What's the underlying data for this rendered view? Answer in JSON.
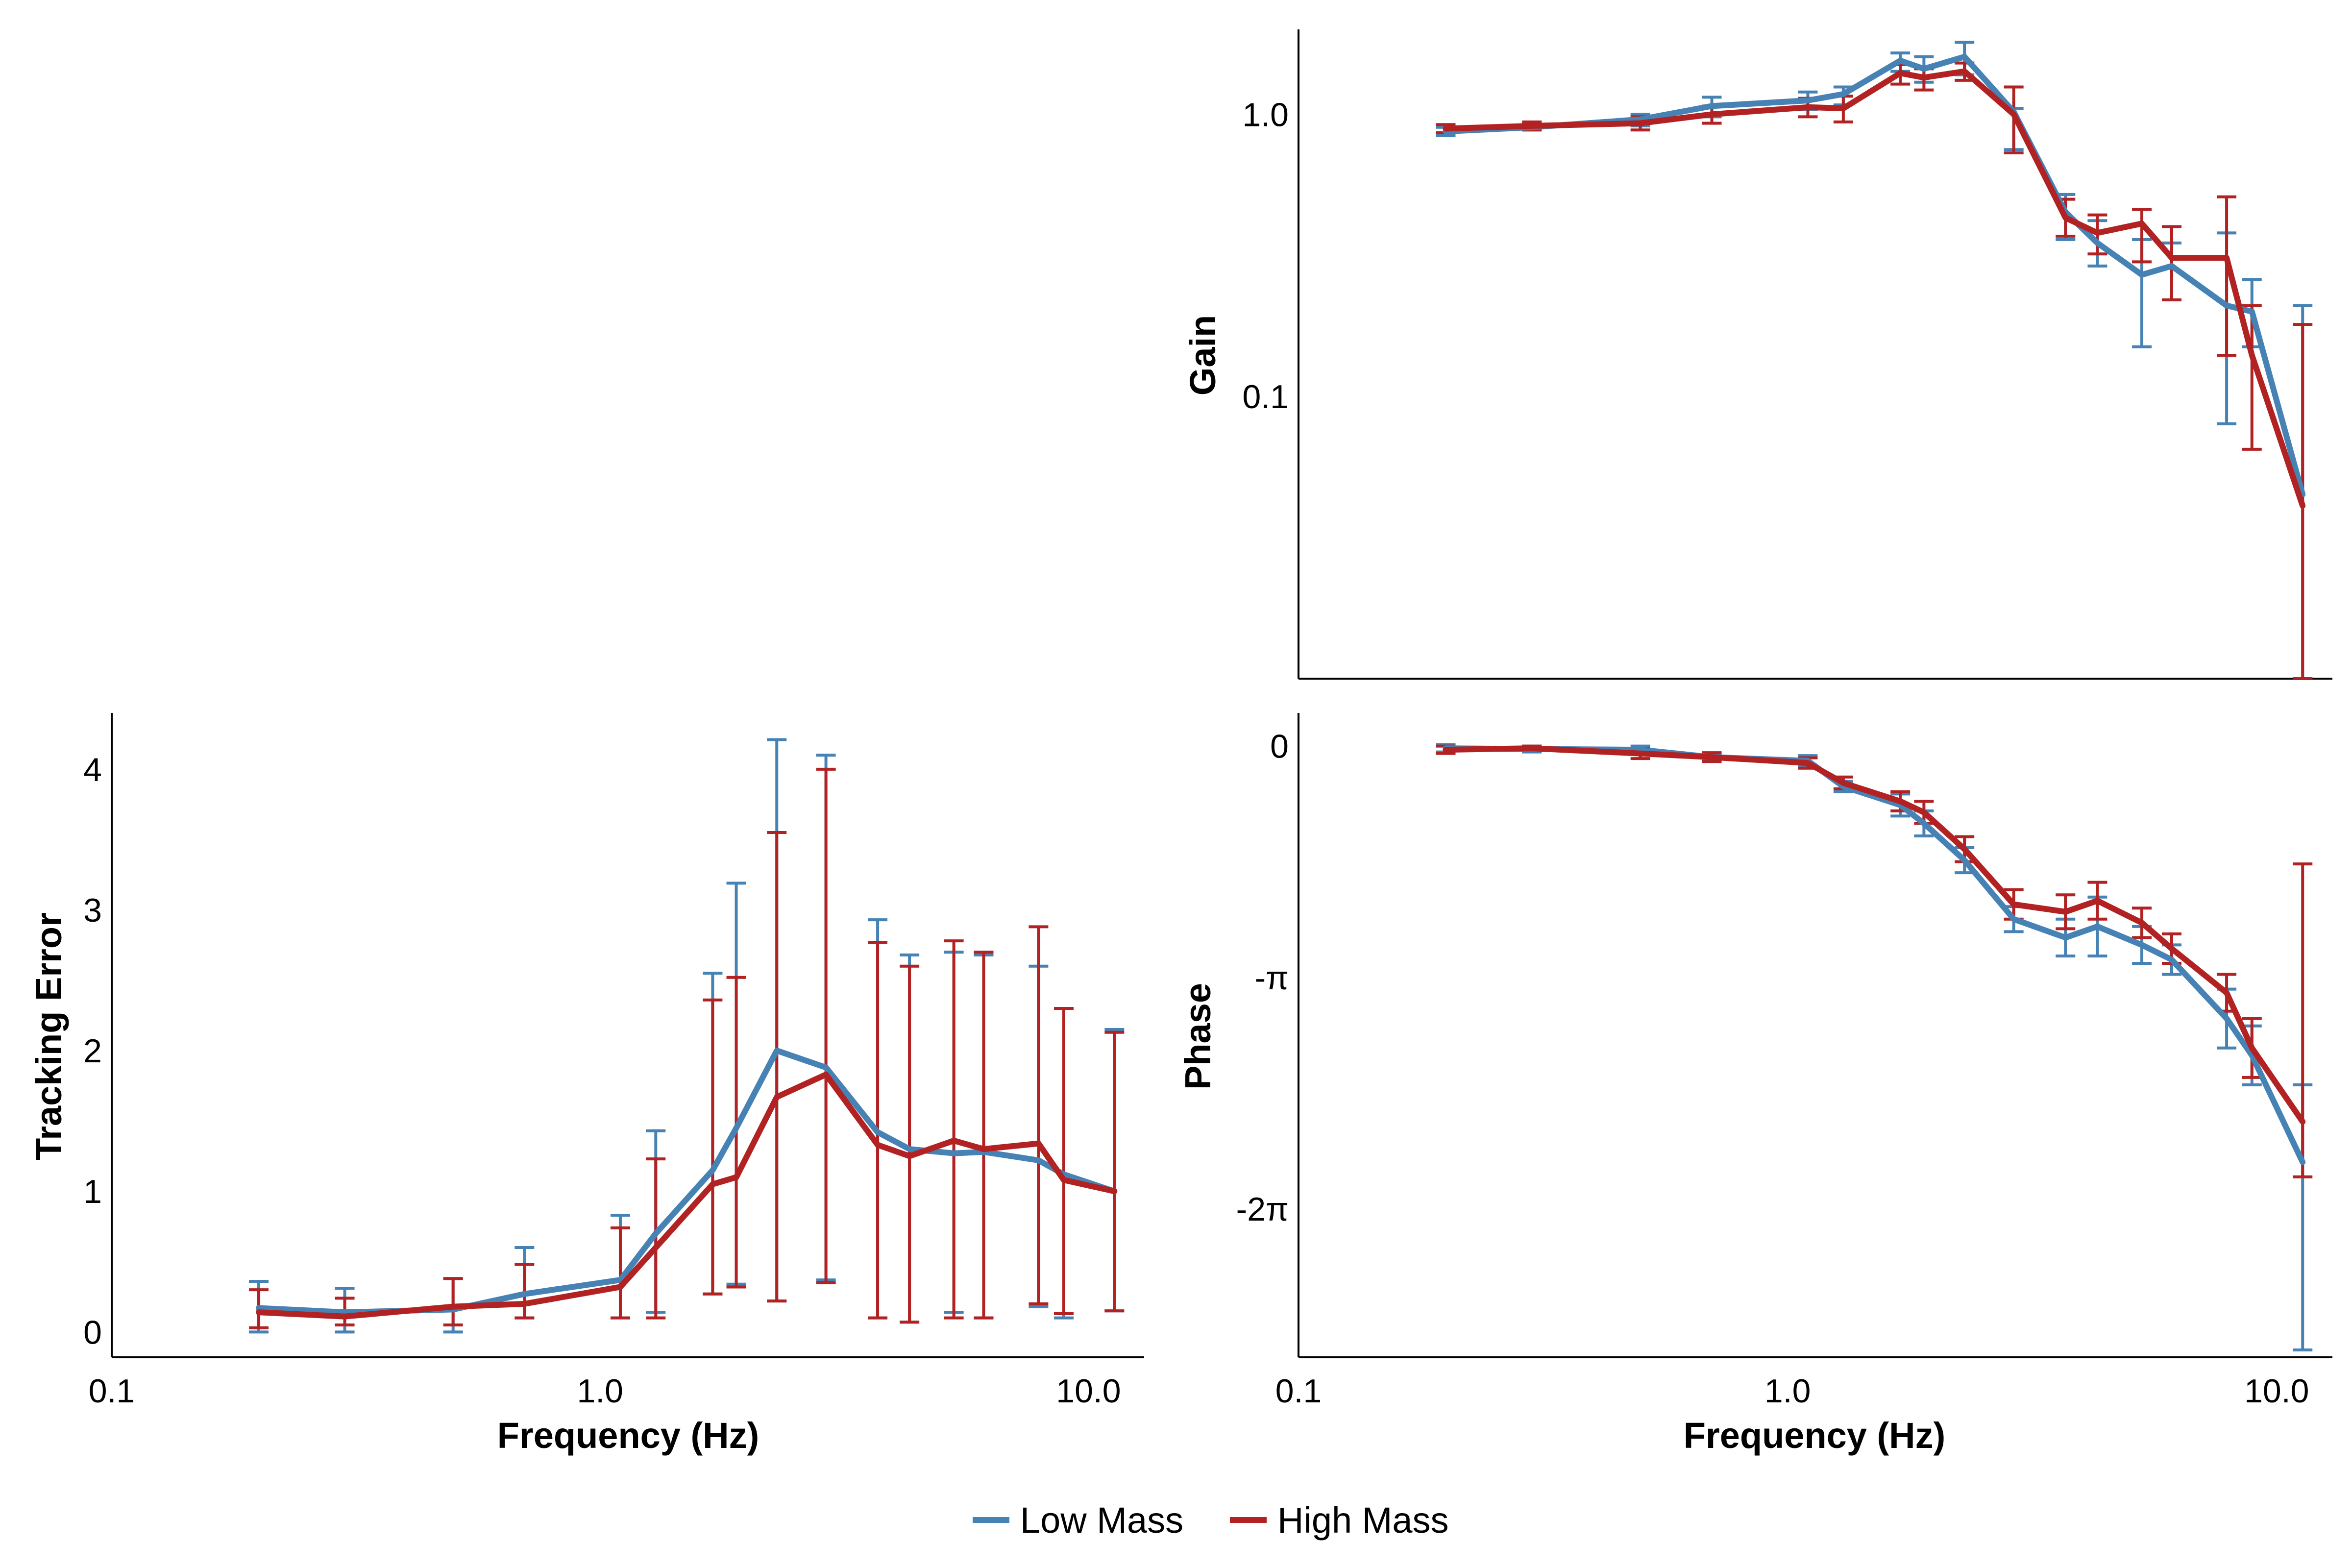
{
  "colors": {
    "low_mass": "#4682B4",
    "high_mass": "#B22222"
  },
  "legend": {
    "items": [
      "Low Mass",
      "High Mass"
    ],
    "placement": "bottom-center"
  },
  "chart_data": [
    {
      "id": "gain",
      "type": "line",
      "title": "",
      "xlabel": "",
      "ylabel": "Gain",
      "xscale": "log",
      "yscale": "log",
      "xlim": [
        0.1,
        13.0
      ],
      "ylim": [
        0.01,
        2.0
      ],
      "xticks": [],
      "yticks": [
        {
          "value": 0.1,
          "label": "0.1"
        },
        {
          "value": 1.0,
          "label": "1.0"
        }
      ],
      "grid": false,
      "error_bars": true,
      "series": [
        {
          "name": "Low Mass",
          "x": [
            0.2,
            0.3,
            0.5,
            0.7,
            1.1,
            1.3,
            1.7,
            1.9,
            2.3,
            2.9,
            3.7,
            4.3,
            5.3,
            6.1,
            7.9,
            8.9,
            11.3
          ],
          "y": [
            0.87,
            0.9,
            0.96,
            1.07,
            1.12,
            1.18,
            1.55,
            1.45,
            1.6,
            1.02,
            0.45,
            0.35,
            0.27,
            0.29,
            0.21,
            0.2,
            0.045
          ],
          "err_low": [
            0.84,
            0.88,
            0.91,
            0.98,
            1.04,
            1.08,
            1.42,
            1.3,
            1.38,
            0.75,
            0.36,
            0.29,
            0.15,
            0.22,
            0.08,
            0.15,
            0.01
          ],
          "err_high": [
            0.9,
            0.92,
            1.0,
            1.15,
            1.2,
            1.25,
            1.65,
            1.6,
            1.8,
            1.05,
            0.52,
            0.42,
            0.36,
            0.35,
            0.38,
            0.26,
            0.21
          ]
        },
        {
          "name": "High Mass",
          "x": [
            0.2,
            0.3,
            0.5,
            0.7,
            1.1,
            1.3,
            1.7,
            1.9,
            2.3,
            2.9,
            3.7,
            4.3,
            5.3,
            6.1,
            7.9,
            8.9,
            11.3
          ],
          "y": [
            0.89,
            0.91,
            0.93,
            1.0,
            1.06,
            1.05,
            1.4,
            1.35,
            1.42,
            1.0,
            0.43,
            0.38,
            0.41,
            0.31,
            0.31,
            0.14,
            0.041
          ],
          "err_low": [
            0.86,
            0.88,
            0.88,
            0.93,
            0.98,
            0.94,
            1.28,
            1.22,
            1.32,
            0.73,
            0.37,
            0.32,
            0.3,
            0.22,
            0.14,
            0.065,
            0.01
          ],
          "err_high": [
            0.92,
            0.94,
            0.98,
            1.07,
            1.14,
            1.16,
            1.5,
            1.45,
            1.52,
            1.25,
            0.5,
            0.44,
            0.46,
            0.4,
            0.51,
            0.21,
            0.18
          ]
        }
      ]
    },
    {
      "id": "tracking",
      "type": "line",
      "title": "",
      "xlabel": "Frequency (Hz)",
      "ylabel": "Tracking Error",
      "xscale": "log",
      "yscale": "linear",
      "xlim": [
        0.1,
        13.0
      ],
      "ylim": [
        -0.18,
        4.4
      ],
      "xticks": [
        {
          "value": 0.1,
          "label": "0.1"
        },
        {
          "value": 1.0,
          "label": "1.0"
        },
        {
          "value": 10.0,
          "label": "10.0"
        }
      ],
      "yticks": [
        {
          "value": 0,
          "label": "0"
        },
        {
          "value": 1,
          "label": "1"
        },
        {
          "value": 2,
          "label": "2"
        },
        {
          "value": 3,
          "label": "3"
        },
        {
          "value": 4,
          "label": "4"
        }
      ],
      "grid": false,
      "error_bars": true,
      "series": [
        {
          "name": "Low Mass",
          "x": [
            0.2,
            0.3,
            0.5,
            0.7,
            1.1,
            1.3,
            1.7,
            1.9,
            2.3,
            2.9,
            3.7,
            4.3,
            5.3,
            6.1,
            7.9,
            8.9,
            11.3
          ],
          "y": [
            0.17,
            0.14,
            0.16,
            0.27,
            0.37,
            0.7,
            1.15,
            1.45,
            2.0,
            1.88,
            1.42,
            1.3,
            1.27,
            1.28,
            1.22,
            1.12,
            1.0
          ],
          "err_low": [
            0.0,
            0.0,
            0.0,
            0.1,
            0.1,
            0.14,
            0.27,
            0.34,
            0.22,
            0.37,
            0.1,
            0.07,
            0.14,
            0.1,
            0.18,
            0.1,
            0.15
          ],
          "err_high": [
            0.36,
            0.31,
            0.38,
            0.6,
            0.83,
            1.43,
            2.55,
            3.19,
            4.21,
            4.1,
            2.93,
            2.68,
            2.7,
            2.68,
            2.6,
            2.3,
            2.15
          ]
        },
        {
          "name": "High Mass",
          "x": [
            0.2,
            0.3,
            0.5,
            0.7,
            1.1,
            1.3,
            1.7,
            1.9,
            2.3,
            2.9,
            3.7,
            4.3,
            5.3,
            6.1,
            7.9,
            8.9,
            11.3
          ],
          "y": [
            0.14,
            0.11,
            0.18,
            0.2,
            0.32,
            0.6,
            1.05,
            1.1,
            1.67,
            1.83,
            1.33,
            1.25,
            1.36,
            1.3,
            1.34,
            1.08,
            1.0
          ],
          "err_low": [
            0.03,
            0.05,
            0.05,
            0.1,
            0.1,
            0.1,
            0.27,
            0.32,
            0.22,
            0.35,
            0.1,
            0.07,
            0.1,
            0.1,
            0.2,
            0.13,
            0.15
          ],
          "err_high": [
            0.3,
            0.24,
            0.38,
            0.48,
            0.74,
            1.23,
            2.36,
            2.52,
            3.55,
            4.0,
            2.77,
            2.6,
            2.78,
            2.7,
            2.88,
            2.3,
            2.13
          ]
        }
      ]
    },
    {
      "id": "phase",
      "type": "line",
      "title": "",
      "xlabel": "Frequency (Hz)",
      "ylabel": "Phase",
      "xscale": "log",
      "yscale": "linear",
      "xlim": [
        0.1,
        13.0
      ],
      "ylim": [
        -8.3,
        0.45
      ],
      "xticks": [
        {
          "value": 0.1,
          "label": "0.1"
        },
        {
          "value": 1.0,
          "label": "1.0"
        },
        {
          "value": 10.0,
          "label": "10.0"
        }
      ],
      "yticks": [
        {
          "value": 0,
          "label": "0"
        },
        {
          "value": -3.14159,
          "label": "-π"
        },
        {
          "value": -6.28318,
          "label": "-2π"
        }
      ],
      "grid": false,
      "error_bars": true,
      "series": [
        {
          "name": "Low Mass",
          "x": [
            0.2,
            0.3,
            0.5,
            0.7,
            1.1,
            1.3,
            1.7,
            1.9,
            2.3,
            2.9,
            3.7,
            4.3,
            5.3,
            6.1,
            7.9,
            8.9,
            11.3
          ],
          "y": [
            -0.03,
            -0.04,
            -0.05,
            -0.15,
            -0.2,
            -0.55,
            -0.8,
            -1.05,
            -1.55,
            -2.35,
            -2.6,
            -2.45,
            -2.7,
            -2.9,
            -3.7,
            -4.2,
            -5.65
          ],
          "err_low": [
            -0.08,
            -0.08,
            -0.1,
            -0.2,
            -0.27,
            -0.62,
            -0.95,
            -1.22,
            -1.72,
            -2.52,
            -2.85,
            -2.85,
            -2.95,
            -3.1,
            -4.1,
            -4.6,
            -8.2
          ],
          "err_high": [
            0.02,
            0.0,
            0.0,
            -0.1,
            -0.13,
            -0.48,
            -0.65,
            -0.88,
            -1.38,
            -2.18,
            -2.35,
            -2.05,
            -2.45,
            -2.7,
            -3.3,
            -3.8,
            -4.6
          ]
        },
        {
          "name": "High Mass",
          "x": [
            0.2,
            0.3,
            0.5,
            0.7,
            1.1,
            1.3,
            1.7,
            1.9,
            2.3,
            2.9,
            3.7,
            4.3,
            5.3,
            6.1,
            7.9,
            8.9,
            11.3
          ],
          "y": [
            -0.05,
            -0.03,
            -0.1,
            -0.15,
            -0.23,
            -0.5,
            -0.75,
            -0.9,
            -1.4,
            -2.15,
            -2.25,
            -2.1,
            -2.4,
            -2.75,
            -3.35,
            -4.1,
            -5.1
          ],
          "err_low": [
            -0.1,
            -0.06,
            -0.17,
            -0.21,
            -0.3,
            -0.58,
            -0.88,
            -1.05,
            -1.57,
            -2.35,
            -2.48,
            -2.35,
            -2.6,
            -2.95,
            -3.6,
            -4.5,
            -5.85
          ],
          "err_high": [
            0.0,
            0.0,
            -0.03,
            -0.09,
            -0.16,
            -0.42,
            -0.62,
            -0.75,
            -1.23,
            -1.95,
            -2.02,
            -1.85,
            -2.2,
            -2.55,
            -3.1,
            -3.7,
            -1.6
          ]
        }
      ]
    }
  ]
}
